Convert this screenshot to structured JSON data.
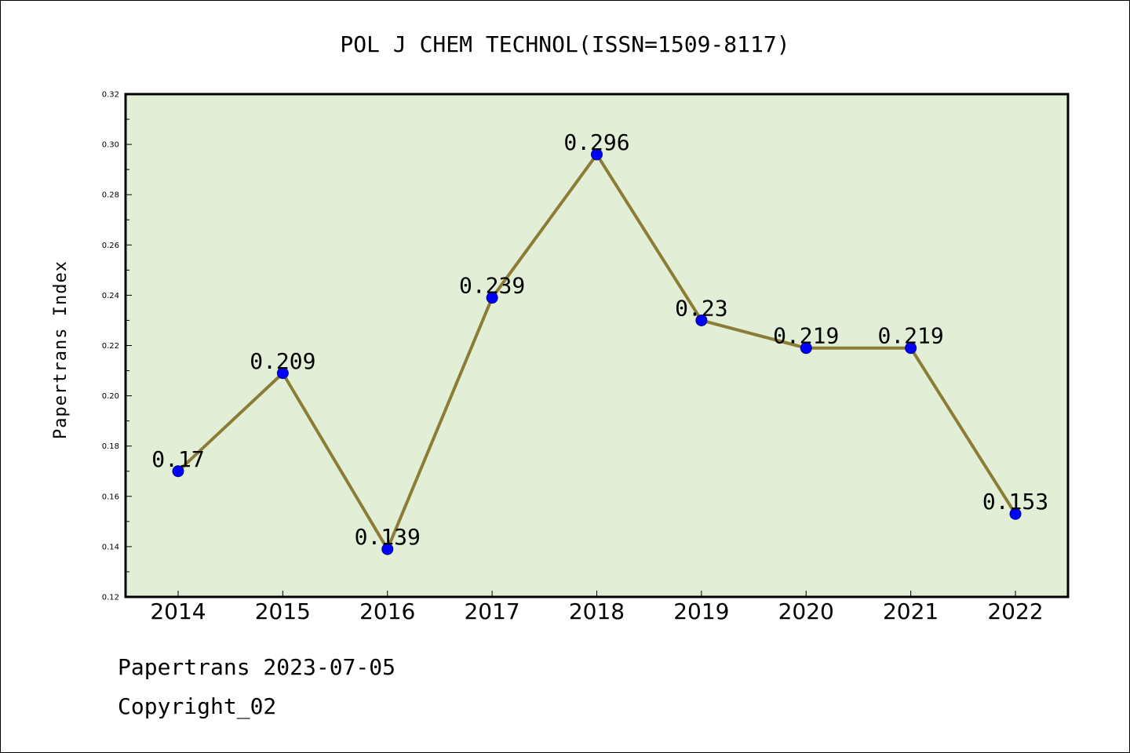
{
  "chart_data": {
    "type": "line",
    "title": "POL J CHEM TECHNOL(ISSN=1509-8117)",
    "xlabel": "",
    "ylabel": "Papertrans Index",
    "x": [
      "2014",
      "2015",
      "2016",
      "2017",
      "2018",
      "2019",
      "2020",
      "2021",
      "2022"
    ],
    "series": [
      {
        "values": [
          0.17,
          0.209,
          0.139,
          0.239,
          0.296,
          0.23,
          0.219,
          0.219,
          0.153
        ]
      }
    ],
    "data_labels": [
      "0.17",
      "0.209",
      "0.139",
      "0.239",
      "0.296",
      "0.23",
      "0.219",
      "0.219",
      "0.153"
    ],
    "ylim": [
      0.12,
      0.32
    ],
    "yticks": [
      "0.12",
      "0.14",
      "0.16",
      "0.18",
      "0.20",
      "0.22",
      "0.24",
      "0.26",
      "0.28",
      "0.30",
      "0.32"
    ],
    "grid": false,
    "legend": "none",
    "colors": {
      "plot_background": "#e2efd6",
      "line": "#8b7d37",
      "marker": "#0000ff"
    }
  },
  "footer": {
    "line1": "Papertrans 2023-07-05",
    "line2": "Copyright_02"
  }
}
